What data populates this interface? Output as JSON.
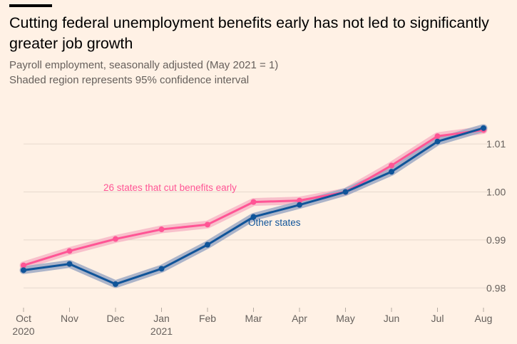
{
  "title": "Cutting federal unemployment benefits early has not led to significantly greater job growth",
  "subtitle_line1": "Payroll employment, seasonally adjusted (May 2021 = 1)",
  "subtitle_line2": "Shaded region represents 95% confidence interval",
  "chart_data": {
    "type": "line",
    "title": "Cutting federal unemployment benefits early has not led to significantly greater job growth",
    "ylabel": "Payroll employment, seasonally adjusted (May 2021 = 1)",
    "xlabel": "",
    "ylim": [
      0.975,
      1.0155
    ],
    "yticks": [
      0.98,
      0.99,
      1.0,
      1.01
    ],
    "ytick_labels": [
      "0.98",
      "0.99",
      "1.00",
      "1.01"
    ],
    "grid": true,
    "categories": [
      "Oct",
      "Nov",
      "Dec",
      "Jan",
      "Feb",
      "Mar",
      "Apr",
      "May",
      "Jun",
      "Jul",
      "Aug"
    ],
    "category_years": {
      "0": "2020",
      "3": "2021"
    },
    "series": [
      {
        "name": "Other states",
        "color": "#0F5499",
        "band_color": "#9DA9C4",
        "values": [
          0.9837,
          0.985,
          0.9808,
          0.984,
          0.989,
          0.9948,
          0.9973,
          1.0,
          1.0042,
          1.0105,
          1.0133
        ]
      },
      {
        "name": "26 states that cut benefits early",
        "color": "#FF5595",
        "band_color": "#F7B7C7",
        "values": [
          0.9847,
          0.9877,
          0.9902,
          0.9922,
          0.9932,
          0.9979,
          0.9982,
          1.0,
          1.0055,
          1.0116,
          1.0129
        ]
      }
    ],
    "annotations": [
      {
        "text": "26 states that cut benefits early",
        "series": "26 states that cut benefits early"
      },
      {
        "text": "Other states",
        "series": "Other states"
      }
    ],
    "confidence_interval": "95%"
  }
}
